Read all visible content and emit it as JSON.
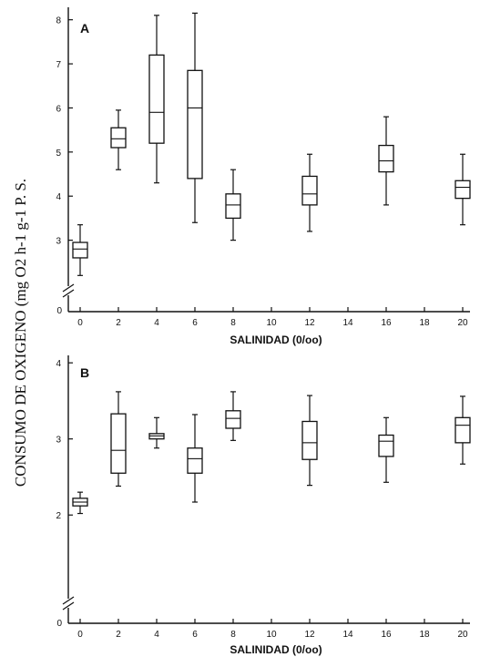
{
  "ylabel": "CONSUMO DE OXIGENO (mg O2 h-1 g-1 P. S.",
  "chart_data": [
    {
      "type": "box",
      "panel": "A",
      "xlabel": "SALINIDAD (0/oo)",
      "x_ticks": [
        "0",
        "2",
        "4",
        "6",
        "8",
        "10",
        "12",
        "14",
        "16",
        "18",
        "20"
      ],
      "y_ticks": [
        "3",
        "4",
        "5",
        "6",
        "7",
        "8"
      ],
      "y_zero_label": "0",
      "ylim": [
        2.0,
        8.2
      ],
      "axis_break": true,
      "boxes": [
        {
          "x": 0,
          "whisker_low": 2.2,
          "q1": 2.6,
          "median": 2.8,
          "q3": 2.95,
          "whisker_high": 3.35
        },
        {
          "x": 2,
          "whisker_low": 4.6,
          "q1": 5.1,
          "median": 5.3,
          "q3": 5.55,
          "whisker_high": 5.95
        },
        {
          "x": 4,
          "whisker_low": 4.3,
          "q1": 5.2,
          "median": 5.9,
          "q3": 7.2,
          "whisker_high": 8.1
        },
        {
          "x": 6,
          "whisker_low": 3.4,
          "q1": 4.4,
          "median": 6.0,
          "q3": 6.85,
          "whisker_high": 8.15
        },
        {
          "x": 8,
          "whisker_low": 3.0,
          "q1": 3.5,
          "median": 3.8,
          "q3": 4.05,
          "whisker_high": 4.6
        },
        {
          "x": 12,
          "whisker_low": 3.2,
          "q1": 3.8,
          "median": 4.05,
          "q3": 4.45,
          "whisker_high": 4.95
        },
        {
          "x": 16,
          "whisker_low": 3.8,
          "q1": 4.55,
          "median": 4.8,
          "q3": 5.15,
          "whisker_high": 5.8
        },
        {
          "x": 20,
          "whisker_low": 3.35,
          "q1": 3.95,
          "median": 4.2,
          "q3": 4.35,
          "whisker_high": 4.95
        }
      ]
    },
    {
      "type": "box",
      "panel": "B",
      "xlabel": "SALINIDAD (0/oo)",
      "x_ticks": [
        "0",
        "2",
        "4",
        "6",
        "8",
        "10",
        "12",
        "14",
        "16",
        "18",
        "20"
      ],
      "y_ticks": [
        "2",
        "3",
        "4"
      ],
      "y_zero_label": "0",
      "ylim": [
        1.2,
        4.05
      ],
      "axis_break": true,
      "boxes": [
        {
          "x": 0,
          "whisker_low": 2.02,
          "q1": 2.12,
          "median": 2.17,
          "q3": 2.22,
          "whisker_high": 2.3
        },
        {
          "x": 2,
          "whisker_low": 2.38,
          "q1": 2.55,
          "median": 2.85,
          "q3": 3.33,
          "whisker_high": 3.62
        },
        {
          "x": 4,
          "whisker_low": 2.88,
          "q1": 3.0,
          "median": 3.04,
          "q3": 3.07,
          "whisker_high": 3.28
        },
        {
          "x": 6,
          "whisker_low": 2.17,
          "q1": 2.55,
          "median": 2.74,
          "q3": 2.88,
          "whisker_high": 3.32
        },
        {
          "x": 8,
          "whisker_low": 2.98,
          "q1": 3.14,
          "median": 3.27,
          "q3": 3.37,
          "whisker_high": 3.62
        },
        {
          "x": 12,
          "whisker_low": 2.39,
          "q1": 2.73,
          "median": 2.95,
          "q3": 3.23,
          "whisker_high": 3.57
        },
        {
          "x": 16,
          "whisker_low": 2.43,
          "q1": 2.77,
          "median": 2.97,
          "q3": 3.05,
          "whisker_high": 3.28
        },
        {
          "x": 20,
          "whisker_low": 2.67,
          "q1": 2.95,
          "median": 3.18,
          "q3": 3.28,
          "whisker_high": 3.56
        }
      ]
    }
  ]
}
